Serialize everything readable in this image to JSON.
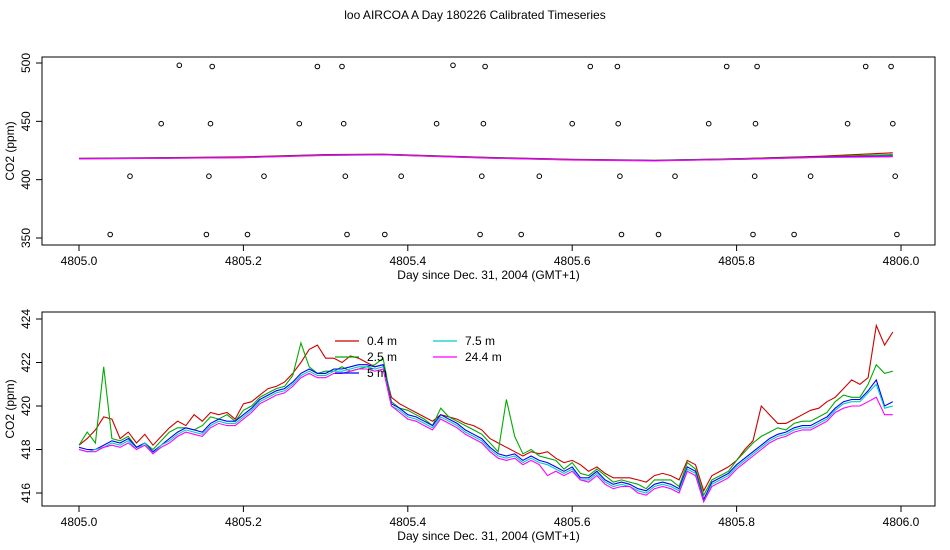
{
  "title": "loo AIRCOA A  Day 180226  Calibrated Timeseries",
  "colors": {
    "0.4 m": "#cc0000",
    "2.5 m": "#00aa00",
    "5 m": "#0000ff",
    "7.5 m": "#00cccc",
    "24.4 m": "#ff00ff",
    "points": "#000000"
  },
  "chart_data": [
    {
      "type": "line",
      "ylabel": "CO2 (ppm)",
      "xlabel": "Day since Dec. 31, 2004 (GMT+1)",
      "xlim": [
        4805.0,
        4806.0
      ],
      "ylim": [
        350,
        500
      ],
      "xticks": [
        "4805.0",
        "4805.2",
        "4805.4",
        "4805.6",
        "4805.8",
        "4806.0"
      ],
      "yticks": [
        "350",
        "400",
        "450",
        "500"
      ],
      "series": [
        {
          "color_key": "0.4 m",
          "x": [
            4805.0,
            4805.1,
            4805.2,
            4805.3,
            4805.37,
            4805.5,
            4805.6,
            4805.7,
            4805.8,
            4805.9,
            4805.99
          ],
          "y": [
            418.2,
            418.8,
            419.5,
            421.5,
            421.8,
            419,
            417.5,
            416.6,
            418,
            420,
            423
          ]
        },
        {
          "color_key": "2.5 m",
          "x": [
            4805.0,
            4805.1,
            4805.2,
            4805.3,
            4805.37,
            4805.5,
            4805.6,
            4805.7,
            4805.8,
            4805.9,
            4805.99
          ],
          "y": [
            418.1,
            418.6,
            419.2,
            421.2,
            421.6,
            418.8,
            417.2,
            416.4,
            417.8,
            419.6,
            421.5
          ]
        },
        {
          "color_key": "5 m",
          "x": [
            4805.0,
            4805.1,
            4805.2,
            4805.3,
            4805.37,
            4805.5,
            4805.6,
            4805.7,
            4805.8,
            4805.9,
            4805.99
          ],
          "y": [
            418,
            418.4,
            419,
            421,
            421.4,
            418.6,
            417,
            416.3,
            417.5,
            419.3,
            420.2
          ]
        },
        {
          "color_key": "24.4 m",
          "x": [
            4805.0,
            4805.1,
            4805.2,
            4805.3,
            4805.37,
            4805.5,
            4805.6,
            4805.7,
            4805.8,
            4805.9,
            4805.99
          ],
          "y": [
            417.9,
            418.3,
            418.9,
            420.8,
            421.3,
            418.5,
            416.9,
            416.2,
            417.4,
            419.1,
            419.7
          ]
        }
      ],
      "points": [
        {
          "x": 4805.038,
          "y": 353
        },
        {
          "x": 4805.062,
          "y": 403
        },
        {
          "x": 4805.1,
          "y": 448
        },
        {
          "x": 4805.122,
          "y": 498
        },
        {
          "x": 4805.155,
          "y": 353
        },
        {
          "x": 4805.158,
          "y": 403
        },
        {
          "x": 4805.16,
          "y": 448
        },
        {
          "x": 4805.162,
          "y": 497
        },
        {
          "x": 4805.205,
          "y": 353
        },
        {
          "x": 4805.225,
          "y": 403
        },
        {
          "x": 4805.268,
          "y": 448
        },
        {
          "x": 4805.29,
          "y": 497
        },
        {
          "x": 4805.32,
          "y": 497
        },
        {
          "x": 4805.322,
          "y": 448
        },
        {
          "x": 4805.324,
          "y": 403
        },
        {
          "x": 4805.326,
          "y": 353
        },
        {
          "x": 4805.372,
          "y": 353
        },
        {
          "x": 4805.392,
          "y": 403
        },
        {
          "x": 4805.435,
          "y": 448
        },
        {
          "x": 4805.455,
          "y": 498
        },
        {
          "x": 4805.488,
          "y": 353
        },
        {
          "x": 4805.49,
          "y": 403
        },
        {
          "x": 4805.492,
          "y": 448
        },
        {
          "x": 4805.494,
          "y": 497
        },
        {
          "x": 4805.538,
          "y": 353
        },
        {
          "x": 4805.56,
          "y": 403
        },
        {
          "x": 4805.6,
          "y": 448
        },
        {
          "x": 4805.622,
          "y": 497
        },
        {
          "x": 4805.655,
          "y": 497
        },
        {
          "x": 4805.656,
          "y": 448
        },
        {
          "x": 4805.658,
          "y": 403
        },
        {
          "x": 4805.66,
          "y": 353
        },
        {
          "x": 4805.705,
          "y": 353
        },
        {
          "x": 4805.725,
          "y": 403
        },
        {
          "x": 4805.766,
          "y": 448
        },
        {
          "x": 4805.788,
          "y": 497
        },
        {
          "x": 4805.82,
          "y": 353
        },
        {
          "x": 4805.822,
          "y": 403
        },
        {
          "x": 4805.823,
          "y": 448
        },
        {
          "x": 4805.825,
          "y": 497
        },
        {
          "x": 4805.87,
          "y": 353
        },
        {
          "x": 4805.89,
          "y": 403
        },
        {
          "x": 4805.935,
          "y": 448
        },
        {
          "x": 4805.957,
          "y": 497
        },
        {
          "x": 4805.988,
          "y": 497
        },
        {
          "x": 4805.99,
          "y": 448
        },
        {
          "x": 4805.993,
          "y": 403
        },
        {
          "x": 4805.995,
          "y": 353
        }
      ]
    },
    {
      "type": "line",
      "ylabel": "CO2 (ppm)",
      "xlabel": "Day since Dec. 31, 2004 (GMT+1)",
      "xlim": [
        4805.0,
        4806.0
      ],
      "ylim": [
        416,
        424
      ],
      "xticks": [
        "4805.0",
        "4805.2",
        "4805.4",
        "4805.6",
        "4805.8",
        "4806.0"
      ],
      "yticks": [
        "416",
        "418",
        "420",
        "422",
        "424"
      ],
      "legend": {
        "placement": "top-left",
        "entries": [
          "0.4 m",
          "2.5 m",
          "5 m",
          "7.5 m",
          "24.4 m"
        ]
      },
      "x": [
        4805.0,
        4805.01,
        4805.02,
        4805.03,
        4805.04,
        4805.05,
        4805.06,
        4805.07,
        4805.08,
        4805.09,
        4805.1,
        4805.11,
        4805.12,
        4805.13,
        4805.14,
        4805.15,
        4805.16,
        4805.17,
        4805.18,
        4805.19,
        4805.2,
        4805.21,
        4805.22,
        4805.23,
        4805.24,
        4805.25,
        4805.26,
        4805.27,
        4805.28,
        4805.29,
        4805.3,
        4805.31,
        4805.32,
        4805.33,
        4805.34,
        4805.35,
        4805.36,
        4805.37,
        4805.38,
        4805.39,
        4805.4,
        4805.41,
        4805.42,
        4805.43,
        4805.44,
        4805.45,
        4805.46,
        4805.47,
        4805.48,
        4805.49,
        4805.5,
        4805.51,
        4805.52,
        4805.53,
        4805.54,
        4805.55,
        4805.56,
        4805.57,
        4805.58,
        4805.59,
        4805.6,
        4805.61,
        4805.62,
        4805.63,
        4805.64,
        4805.65,
        4805.66,
        4805.67,
        4805.68,
        4805.69,
        4805.7,
        4805.71,
        4805.72,
        4805.73,
        4805.74,
        4805.75,
        4805.76,
        4805.77,
        4805.78,
        4805.79,
        4805.8,
        4805.81,
        4805.82,
        4805.83,
        4805.84,
        4805.85,
        4805.86,
        4805.87,
        4805.88,
        4805.89,
        4805.9,
        4805.91,
        4805.92,
        4805.93,
        4805.94,
        4805.95,
        4805.96,
        4805.97,
        4805.98,
        4805.99
      ],
      "series": [
        {
          "name": "0.4 m",
          "values": [
            418.2,
            418.5,
            418.9,
            419.5,
            419.4,
            418.5,
            418.8,
            418.3,
            418.7,
            418.2,
            418.6,
            419.0,
            419.3,
            419.1,
            419.6,
            419.3,
            419.7,
            419.6,
            419.7,
            419.4,
            420.1,
            420.2,
            420.5,
            420.8,
            420.9,
            421.1,
            421.5,
            422.0,
            422.6,
            422.8,
            422.2,
            422.2,
            422.0,
            422.3,
            422.2,
            422.0,
            421.8,
            421.9,
            420.4,
            420.1,
            419.9,
            419.7,
            419.5,
            419.3,
            419.6,
            419.5,
            419.4,
            419.2,
            419.1,
            418.9,
            418.5,
            418.3,
            418.1,
            417.9,
            417.7,
            417.9,
            417.8,
            417.9,
            417.6,
            417.4,
            417.5,
            417.3,
            417.0,
            417.2,
            416.9,
            416.7,
            416.7,
            416.7,
            416.6,
            416.5,
            416.8,
            416.9,
            416.8,
            416.6,
            417.5,
            417.3,
            416.1,
            416.8,
            417.0,
            417.2,
            417.5,
            418.0,
            418.4,
            420.0,
            419.6,
            419.2,
            419.2,
            419.4,
            419.6,
            419.8,
            419.9,
            420.2,
            420.4,
            420.8,
            421.2,
            421.0,
            421.3,
            423.7,
            422.8,
            423.4
          ]
        },
        {
          "name": "2.5 m",
          "values": [
            418.2,
            418.8,
            418.3,
            421.8,
            418.5,
            418.4,
            418.6,
            418.1,
            418.3,
            418.0,
            418.4,
            418.8,
            419.0,
            419.0,
            418.9,
            419.1,
            419.5,
            419.4,
            419.6,
            419.3,
            419.8,
            420.0,
            420.4,
            420.6,
            420.8,
            420.9,
            421.4,
            422.9,
            421.8,
            421.5,
            421.6,
            421.6,
            421.8,
            421.6,
            421.7,
            421.8,
            421.9,
            422.2,
            420.2,
            419.9,
            419.8,
            419.6,
            419.4,
            419.1,
            419.9,
            419.5,
            419.3,
            419.1,
            418.9,
            418.7,
            418.3,
            417.9,
            420.3,
            418.6,
            417.8,
            418.0,
            417.7,
            417.6,
            417.5,
            417.1,
            417.4,
            416.9,
            416.8,
            417.1,
            416.8,
            416.5,
            416.6,
            416.5,
            416.4,
            416.2,
            416.6,
            416.6,
            416.6,
            416.3,
            417.4,
            417.1,
            415.9,
            416.6,
            416.8,
            417.0,
            417.5,
            417.9,
            418.3,
            418.6,
            418.8,
            419.0,
            418.9,
            419.2,
            419.3,
            419.3,
            419.5,
            419.7,
            420.2,
            420.5,
            420.4,
            420.4,
            421.0,
            421.9,
            421.5,
            421.6
          ]
        },
        {
          "name": "5 m",
          "values": [
            418.1,
            418.0,
            418.0,
            418.2,
            418.4,
            418.3,
            418.5,
            418.1,
            418.3,
            417.9,
            418.2,
            418.5,
            418.8,
            419.0,
            418.9,
            418.8,
            419.2,
            419.4,
            419.3,
            419.3,
            419.6,
            419.9,
            420.3,
            420.5,
            420.7,
            420.8,
            421.1,
            421.5,
            421.7,
            421.5,
            421.5,
            421.7,
            421.7,
            421.8,
            421.9,
            421.9,
            421.8,
            421.9,
            420.1,
            419.9,
            419.6,
            419.5,
            419.3,
            419.1,
            419.6,
            419.4,
            419.2,
            418.9,
            418.7,
            418.5,
            418.1,
            417.8,
            417.7,
            417.8,
            417.5,
            417.7,
            417.5,
            417.4,
            417.2,
            417.0,
            417.2,
            416.7,
            416.7,
            417.0,
            416.6,
            416.4,
            416.5,
            416.4,
            416.2,
            416.1,
            416.4,
            416.5,
            416.4,
            416.2,
            417.2,
            417.0,
            415.7,
            416.5,
            416.7,
            416.9,
            417.3,
            417.6,
            417.9,
            418.2,
            418.5,
            418.7,
            418.8,
            419.0,
            419.1,
            419.1,
            419.3,
            419.5,
            419.9,
            420.2,
            420.3,
            420.3,
            420.7,
            421.2,
            420.0,
            420.2
          ]
        },
        {
          "name": "7.5 m",
          "values": [
            418.0,
            417.9,
            418.0,
            418.1,
            418.3,
            418.2,
            418.4,
            418.0,
            418.3,
            417.8,
            418.2,
            418.4,
            418.7,
            418.9,
            418.8,
            418.7,
            419.1,
            419.3,
            419.2,
            419.2,
            419.5,
            419.8,
            420.2,
            420.4,
            420.6,
            420.7,
            421.0,
            421.4,
            421.6,
            421.4,
            421.4,
            421.6,
            421.6,
            421.7,
            421.8,
            421.8,
            421.7,
            421.8,
            420.0,
            419.8,
            419.5,
            419.4,
            419.2,
            419.0,
            419.5,
            419.3,
            419.1,
            418.8,
            418.6,
            418.4,
            418.0,
            417.7,
            417.6,
            417.7,
            417.4,
            417.6,
            417.4,
            417.3,
            417.1,
            416.9,
            417.1,
            416.6,
            416.6,
            416.9,
            416.5,
            416.3,
            416.4,
            416.3,
            416.1,
            416.0,
            416.3,
            416.4,
            416.3,
            416.1,
            417.1,
            416.9,
            415.6,
            416.4,
            416.6,
            416.8,
            417.2,
            417.5,
            417.8,
            418.1,
            418.4,
            418.6,
            418.7,
            418.9,
            419.0,
            419.0,
            419.2,
            419.4,
            419.8,
            420.1,
            420.2,
            420.2,
            420.6,
            421.0,
            419.9,
            420.0
          ]
        },
        {
          "name": "24.4 m",
          "values": [
            418.0,
            417.9,
            417.9,
            418.1,
            418.2,
            418.1,
            418.3,
            418.0,
            418.2,
            417.8,
            418.1,
            418.3,
            418.6,
            418.8,
            418.7,
            418.6,
            419.0,
            419.2,
            419.1,
            419.1,
            419.4,
            419.7,
            420.1,
            420.3,
            420.5,
            420.6,
            420.9,
            421.3,
            421.5,
            421.3,
            421.3,
            421.5,
            421.5,
            421.6,
            421.7,
            421.7,
            421.6,
            421.7,
            420.0,
            419.7,
            419.4,
            419.3,
            419.1,
            418.9,
            419.4,
            419.2,
            419.0,
            418.7,
            418.5,
            418.3,
            417.9,
            417.6,
            417.5,
            417.6,
            417.3,
            417.5,
            417.3,
            416.8,
            417.0,
            416.8,
            417.0,
            416.6,
            416.5,
            416.8,
            416.4,
            416.2,
            416.3,
            416.3,
            416.0,
            415.9,
            416.2,
            416.3,
            416.2,
            416.0,
            417.0,
            416.8,
            415.6,
            416.3,
            416.5,
            416.7,
            417.1,
            417.4,
            417.7,
            418.0,
            418.3,
            418.5,
            418.6,
            418.8,
            418.9,
            418.9,
            419.1,
            419.3,
            419.7,
            419.9,
            420.0,
            420.0,
            420.2,
            420.4,
            419.6,
            419.6
          ]
        }
      ]
    }
  ]
}
